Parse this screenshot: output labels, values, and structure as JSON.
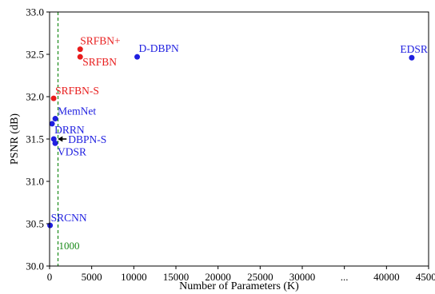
{
  "chart_data": {
    "type": "scatter",
    "xlabel": "Number of Parameters (K)",
    "ylabel": "PSNR (dB)",
    "xlim": [
      0,
      45000
    ],
    "ylim": [
      30.0,
      33.0
    ],
    "x_ticks": [
      0,
      5000,
      10000,
      15000,
      20000,
      25000,
      30000,
      35000,
      40000,
      45000
    ],
    "x_tick_labels": [
      "0",
      "5000",
      "10000",
      "15000",
      "20000",
      "25000",
      "30000",
      "...",
      "40000",
      "45000"
    ],
    "y_ticks": [
      30.0,
      30.5,
      31.0,
      31.5,
      32.0,
      32.5,
      33.0
    ],
    "y_tick_labels": [
      "30.0",
      "30.5",
      "31.0",
      "31.5",
      "32.0",
      "32.5",
      "33.0"
    ],
    "colors": {
      "blue": "#1f1fe0",
      "red": "#e81c1c",
      "green": "#1a8a1a"
    },
    "reference_line": {
      "x": 1000,
      "label": "1000",
      "color": "green",
      "style": "dashed"
    },
    "points": [
      {
        "name": "SRCNN",
        "x": 57,
        "y": 30.48,
        "color": "blue"
      },
      {
        "name": "VDSR",
        "x": 665,
        "y": 31.45,
        "color": "blue"
      },
      {
        "name": "DRRN",
        "x": 297,
        "y": 31.68,
        "color": "blue"
      },
      {
        "name": "MemNet",
        "x": 677,
        "y": 31.74,
        "color": "blue"
      },
      {
        "name": "DBPN-S",
        "x": 500,
        "y": 31.5,
        "color": "blue"
      },
      {
        "name": "D-DBPN",
        "x": 10400,
        "y": 32.47,
        "color": "blue"
      },
      {
        "name": "EDSR",
        "x": 43000,
        "y": 32.46,
        "color": "blue"
      },
      {
        "name": "SRFBN-S",
        "x": 483,
        "y": 31.98,
        "color": "red"
      },
      {
        "name": "SRFBN",
        "x": 3631,
        "y": 32.47,
        "color": "red"
      },
      {
        "name": "SRFBN+",
        "x": 3631,
        "y": 32.56,
        "color": "red"
      }
    ]
  }
}
